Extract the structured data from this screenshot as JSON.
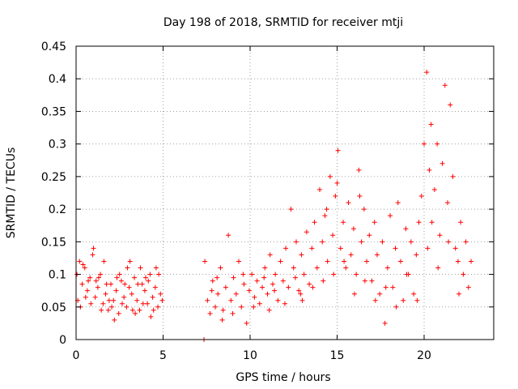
{
  "chart_data": {
    "type": "scatter",
    "title": "Day 198 of 2018, SRMTID for receiver mtji",
    "xlabel": "GPS time / hours",
    "ylabel": "SRMTID / TECUs",
    "xlim": [
      0,
      24
    ],
    "ylim": [
      0,
      0.45
    ],
    "xticks": [
      0,
      5,
      10,
      15,
      20
    ],
    "xtick_labels": [
      "0",
      "5",
      "10",
      "15",
      "20"
    ],
    "yticks": [
      0,
      0.05,
      0.1,
      0.15,
      0.2,
      0.25,
      0.3,
      0.35,
      0.4,
      0.45
    ],
    "ytick_labels": [
      "0",
      "0.05",
      "0.1",
      "0.15",
      "0.2",
      "0.25",
      "0.3",
      "0.35",
      "0.4",
      "0.45"
    ],
    "grid": true,
    "marker": "+",
    "color": "#ff0000",
    "series": [
      {
        "name": "SRMTID",
        "points": [
          [
            0.05,
            0.1
          ],
          [
            0.2,
            0.12
          ],
          [
            0.35,
            0.085
          ],
          [
            0.5,
            0.11
          ],
          [
            0.65,
            0.075
          ],
          [
            0.8,
            0.095
          ],
          [
            0.95,
            0.13
          ],
          [
            1.1,
            0.065
          ],
          [
            1.25,
            0.08
          ],
          [
            1.4,
            0.1
          ],
          [
            1.55,
            0.055
          ],
          [
            1.7,
            0.07
          ],
          [
            1.85,
            0.045
          ],
          [
            2.0,
            0.085
          ],
          [
            2.15,
            0.06
          ],
          [
            2.3,
            0.075
          ],
          [
            2.45,
            0.04
          ],
          [
            2.6,
            0.09
          ],
          [
            2.75,
            0.065
          ],
          [
            2.9,
            0.05
          ],
          [
            3.05,
            0.08
          ],
          [
            3.2,
            0.07
          ],
          [
            3.35,
            0.095
          ],
          [
            3.5,
            0.06
          ],
          [
            3.65,
            0.045
          ],
          [
            3.8,
            0.085
          ],
          [
            3.95,
            0.075
          ],
          [
            4.1,
            0.055
          ],
          [
            4.25,
            0.1
          ],
          [
            4.4,
            0.065
          ],
          [
            4.55,
            0.08
          ],
          [
            4.7,
            0.05
          ],
          [
            4.85,
            0.07
          ],
          [
            4.95,
            0.06
          ],
          [
            0.1,
            0.06
          ],
          [
            0.4,
            0.115
          ],
          [
            0.7,
            0.09
          ],
          [
            1.0,
            0.14
          ],
          [
            1.3,
            0.095
          ],
          [
            1.6,
            0.12
          ],
          [
            1.9,
            0.06
          ],
          [
            2.2,
            0.03
          ],
          [
            2.5,
            0.1
          ],
          [
            2.8,
            0.085
          ],
          [
            3.1,
            0.12
          ],
          [
            3.4,
            0.04
          ],
          [
            3.7,
            0.11
          ],
          [
            4.0,
            0.095
          ],
          [
            4.3,
            0.035
          ],
          [
            4.6,
            0.11
          ],
          [
            0.25,
            0.05
          ],
          [
            0.55,
            0.065
          ],
          [
            0.85,
            0.055
          ],
          [
            1.15,
            0.09
          ],
          [
            1.45,
            0.045
          ],
          [
            1.75,
            0.085
          ],
          [
            2.05,
            0.05
          ],
          [
            2.35,
            0.095
          ],
          [
            2.65,
            0.055
          ],
          [
            2.95,
            0.11
          ],
          [
            3.25,
            0.045
          ],
          [
            3.55,
            0.085
          ],
          [
            3.85,
            0.055
          ],
          [
            4.15,
            0.09
          ],
          [
            4.45,
            0.045
          ],
          [
            4.75,
            0.1
          ],
          [
            7.35,
            0.0
          ],
          [
            7.4,
            0.12
          ],
          [
            7.55,
            0.06
          ],
          [
            7.7,
            0.04
          ],
          [
            7.85,
            0.09
          ],
          [
            8.0,
            0.05
          ],
          [
            8.15,
            0.07
          ],
          [
            8.3,
            0.11
          ],
          [
            8.45,
            0.045
          ],
          [
            8.6,
            0.08
          ],
          [
            8.75,
            0.16
          ],
          [
            8.9,
            0.06
          ],
          [
            9.05,
            0.095
          ],
          [
            9.2,
            0.07
          ],
          [
            9.35,
            0.12
          ],
          [
            9.5,
            0.05
          ],
          [
            9.65,
            0.085
          ],
          [
            9.8,
            0.025
          ],
          [
            9.95,
            0.075
          ],
          [
            10.1,
            0.1
          ],
          [
            10.25,
            0.065
          ],
          [
            10.4,
            0.09
          ],
          [
            10.55,
            0.055
          ],
          [
            10.7,
            0.08
          ],
          [
            10.85,
            0.11
          ],
          [
            11.0,
            0.07
          ],
          [
            11.15,
            0.13
          ],
          [
            11.3,
            0.085
          ],
          [
            11.45,
            0.1
          ],
          [
            11.6,
            0.06
          ],
          [
            11.75,
            0.12
          ],
          [
            11.9,
            0.09
          ],
          [
            12.05,
            0.14
          ],
          [
            12.2,
            0.08
          ],
          [
            12.35,
            0.2
          ],
          [
            12.5,
            0.11
          ],
          [
            12.65,
            0.15
          ],
          [
            12.8,
            0.075
          ],
          [
            12.95,
            0.13
          ],
          [
            13.1,
            0.1
          ],
          [
            13.25,
            0.165
          ],
          [
            13.4,
            0.085
          ],
          [
            13.55,
            0.14
          ],
          [
            13.7,
            0.18
          ],
          [
            13.85,
            0.11
          ],
          [
            14.0,
            0.23
          ],
          [
            14.15,
            0.15
          ],
          [
            14.3,
            0.19
          ],
          [
            14.45,
            0.12
          ],
          [
            14.6,
            0.25
          ],
          [
            14.75,
            0.16
          ],
          [
            14.9,
            0.22
          ],
          [
            15.05,
            0.29
          ],
          [
            15.2,
            0.14
          ],
          [
            15.35,
            0.18
          ],
          [
            15.5,
            0.11
          ],
          [
            15.65,
            0.21
          ],
          [
            15.8,
            0.13
          ],
          [
            15.95,
            0.17
          ],
          [
            16.1,
            0.1
          ],
          [
            16.25,
            0.26
          ],
          [
            16.4,
            0.15
          ],
          [
            16.55,
            0.2
          ],
          [
            16.7,
            0.12
          ],
          [
            16.85,
            0.16
          ],
          [
            17.0,
            0.09
          ],
          [
            17.15,
            0.18
          ],
          [
            17.3,
            0.13
          ],
          [
            17.45,
            0.07
          ],
          [
            17.6,
            0.15
          ],
          [
            17.75,
            0.025
          ],
          [
            17.9,
            0.11
          ],
          [
            18.05,
            0.19
          ],
          [
            18.2,
            0.08
          ],
          [
            18.35,
            0.14
          ],
          [
            18.5,
            0.21
          ],
          [
            18.65,
            0.12
          ],
          [
            18.8,
            0.06
          ],
          [
            18.95,
            0.17
          ],
          [
            19.1,
            0.1
          ],
          [
            19.25,
            0.15
          ],
          [
            19.4,
            0.07
          ],
          [
            19.55,
            0.13
          ],
          [
            19.7,
            0.18
          ],
          [
            19.85,
            0.22
          ],
          [
            20.0,
            0.3
          ],
          [
            20.15,
            0.41
          ],
          [
            20.3,
            0.26
          ],
          [
            20.45,
            0.18
          ],
          [
            20.6,
            0.23
          ],
          [
            20.75,
            0.3
          ],
          [
            20.9,
            0.16
          ],
          [
            21.05,
            0.27
          ],
          [
            21.2,
            0.39
          ],
          [
            21.35,
            0.21
          ],
          [
            21.5,
            0.36
          ],
          [
            21.65,
            0.25
          ],
          [
            21.8,
            0.14
          ],
          [
            21.95,
            0.12
          ],
          [
            22.1,
            0.18
          ],
          [
            22.25,
            0.1
          ],
          [
            22.4,
            0.15
          ],
          [
            22.55,
            0.08
          ],
          [
            22.7,
            0.12
          ],
          [
            13.0,
            0.06
          ],
          [
            13.6,
            0.08
          ],
          [
            14.2,
            0.09
          ],
          [
            14.8,
            0.1
          ],
          [
            15.4,
            0.12
          ],
          [
            16.0,
            0.07
          ],
          [
            16.6,
            0.09
          ],
          [
            17.2,
            0.06
          ],
          [
            17.8,
            0.08
          ],
          [
            18.4,
            0.05
          ],
          [
            19.0,
            0.1
          ],
          [
            19.6,
            0.06
          ],
          [
            20.2,
            0.14
          ],
          [
            20.8,
            0.11
          ],
          [
            21.4,
            0.15
          ],
          [
            22.0,
            0.07
          ],
          [
            9.0,
            0.04
          ],
          [
            9.6,
            0.1
          ],
          [
            10.2,
            0.05
          ],
          [
            10.8,
            0.095
          ],
          [
            11.4,
            0.075
          ],
          [
            12.0,
            0.055
          ],
          [
            12.6,
            0.095
          ],
          [
            8.4,
            0.03
          ],
          [
            7.8,
            0.075
          ],
          [
            8.1,
            0.095
          ],
          [
            11.1,
            0.045
          ],
          [
            12.9,
            0.07
          ],
          [
            14.4,
            0.2
          ],
          [
            15.0,
            0.24
          ],
          [
            16.3,
            0.22
          ],
          [
            20.4,
            0.33
          ]
        ]
      }
    ]
  }
}
